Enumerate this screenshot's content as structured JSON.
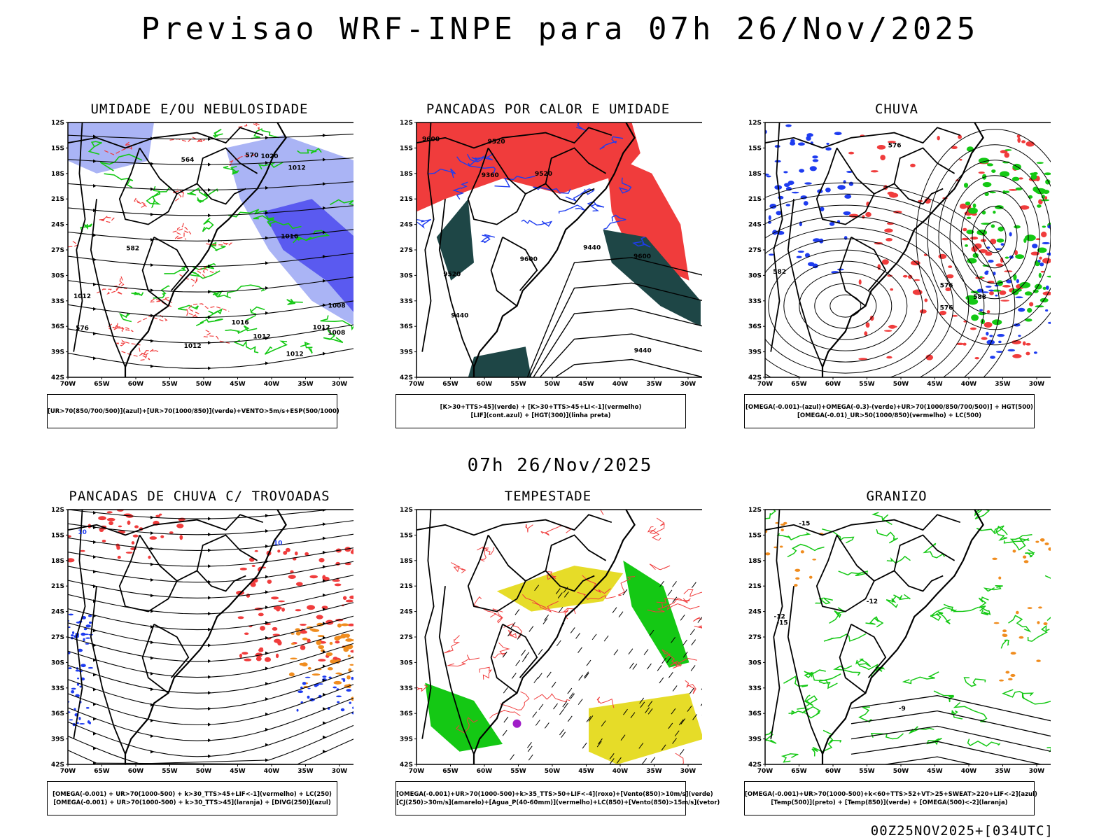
{
  "header": {
    "title": "Previsao WRF-INPE  para 07h 26/Nov/2025"
  },
  "mid_title": "07h 26/Nov/2025",
  "footer": "00Z25NOV2025+[034UTC]",
  "axes": {
    "lat_ticks": [
      "12S",
      "15S",
      "18S",
      "21S",
      "24S",
      "27S",
      "30S",
      "33S",
      "36S",
      "39S",
      "42S"
    ],
    "lon_ticks": [
      "70W",
      "65W",
      "60W",
      "55W",
      "50W",
      "45W",
      "40W",
      "35W",
      "30W"
    ]
  },
  "colors": {
    "red": "#f03c3c",
    "green": "#14c814",
    "blue": "#1e3cf0",
    "lightblue": "#aab4f5",
    "orange": "#f08c1e",
    "yellow": "#e6dc28",
    "darkteal": "#1e4646",
    "purple": "#a01ec8"
  },
  "panels": [
    {
      "id": "umidade",
      "title": "UMIDADE E/OU NEBULOSIDADE",
      "legend": [
        "[UR>70(850/700/500)](azul)+[UR>70(1000/850)](verde)+VENTO>5m/s+ESP(500/1000)"
      ],
      "contour_labels": [
        "1012",
        "1012",
        "1012",
        "1016",
        "1012",
        "1008",
        "1016",
        "1012",
        "1020",
        "1008",
        "1012",
        "570",
        "576",
        "582",
        "564"
      ]
    },
    {
      "id": "pancadas-calor",
      "title": "PANCADAS POR CALOR E UMIDADE",
      "legend": [
        "[K>30+TTS>45](verde)  +  [K>30+TTS>45+LI<-1](vermelho)",
        "[LIF](cont.azul)  +  [HGT(300)](linha preta)"
      ],
      "contour_labels": [
        "9600",
        "9600",
        "9520",
        "9520",
        "9440",
        "9440",
        "9440",
        "9360",
        "9520",
        "9600"
      ]
    },
    {
      "id": "chuva",
      "title": "CHUVA",
      "legend": [
        "[OMEGA(-0.001)-(azul)+OMEGA(-0.3)-(verde)+UR>70(1000/850/700/500)]  +  HGT(500)",
        "[OMEGA(-0.01)_UR>50(1000/850)(vermelho)  +  LC(500)"
      ],
      "contour_labels": [
        "582",
        "576",
        "576",
        "576",
        "588"
      ]
    },
    {
      "id": "trovoadas",
      "title": "PANCADAS DE CHUVA C/ TROVOADAS",
      "legend": [
        "[OMEGA(-0.001)  +  UR>70(1000-500)  +  k>30_TTS>45+LIF<-1](vermelho)  +  LC(250)",
        "[OMEGA(-0.001)  +  UR>70(1000-500)  +  k>30_TTS>45](laranja)  +  [DIVG(250)](azul)"
      ],
      "contour_labels": [
        "10",
        "10"
      ]
    },
    {
      "id": "tempestade",
      "title": "TEMPESTADE",
      "legend": [
        "[OMEGA(-0.001)+UR>70(1000-500)+k>35_TTS>50+LIF<-4](roxo)+[Vento(850)>10m/s](verde)",
        "[CJ(250)>30m/s](amarelo)+[Agua_P(40-60mm)](vermelho)+LC(850)+[Vento(850)>15m/s](vetor)"
      ],
      "contour_labels": []
    },
    {
      "id": "granizo",
      "title": "GRANIZO",
      "legend": [
        "[OMEGA(-0.001)+UR>70(1000-500)+k<60+TTS>52+VT>25+SWEAT>220+LIF<-2](azul)",
        "[Temp(500)](preto)  +  [Temp(850)](verde)  +  [OMEGA(500)<-2](laranja)"
      ],
      "contour_labels": [
        "-12",
        "-12",
        "-15",
        "-15",
        "-9"
      ]
    }
  ]
}
